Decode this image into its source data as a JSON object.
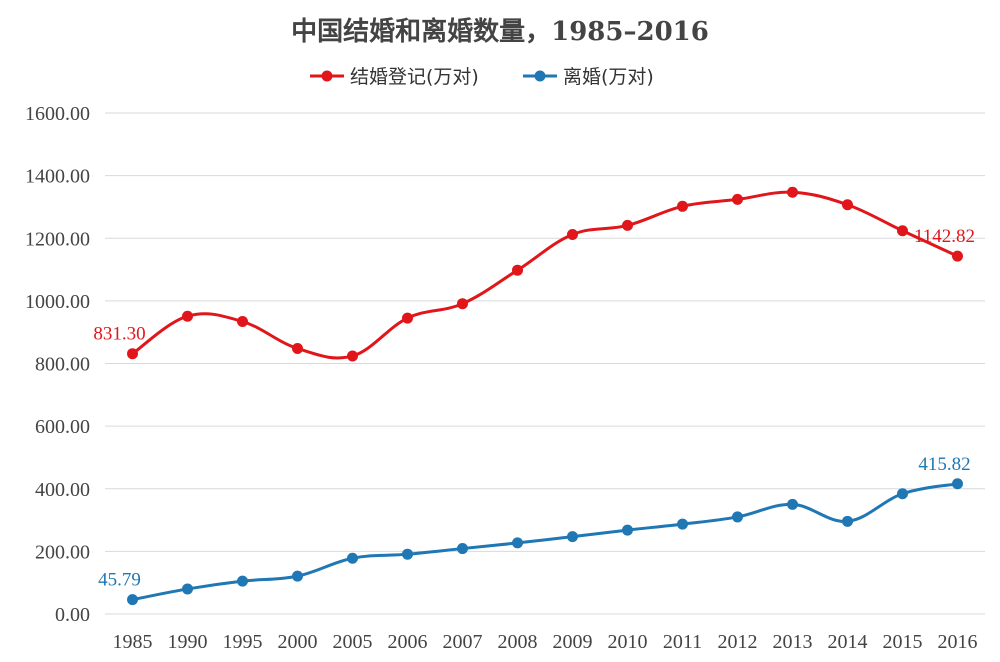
{
  "chart_data": {
    "type": "line",
    "title": "中国结婚和离婚数量，1985–2016",
    "categories": [
      "1985",
      "1990",
      "1995",
      "2000",
      "2005",
      "2006",
      "2007",
      "2008",
      "2009",
      "2010",
      "2011",
      "2012",
      "2013",
      "2014",
      "2015",
      "2016"
    ],
    "series": [
      {
        "name": "结婚登记(万对)",
        "color": "#e0161b",
        "values": [
          831.3,
          951.0,
          934.0,
          848.0,
          824.0,
          945.0,
          991.0,
          1098.0,
          1212.0,
          1241.0,
          1302.0,
          1324.0,
          1347.0,
          1307.0,
          1224.0,
          1142.82
        ],
        "data_labels": {
          "0": "831.30",
          "15": "1142.82"
        }
      },
      {
        "name": "离婚(万对)",
        "color": "#1f77b4",
        "values": [
          45.79,
          80.0,
          105.0,
          121.0,
          178.0,
          191.0,
          209.0,
          227.0,
          247.0,
          268.0,
          287.0,
          310.0,
          350.0,
          296.0,
          384.0,
          415.82
        ],
        "data_labels": {
          "0": "45.79",
          "15": "415.82"
        }
      }
    ],
    "ylim": [
      0,
      1600
    ],
    "yticks": [
      0,
      200,
      400,
      600,
      800,
      1000,
      1200,
      1400,
      1600
    ],
    "ytick_labels": [
      "0.00",
      "200.00",
      "400.00",
      "600.00",
      "800.00",
      "1000.00",
      "1200.00",
      "1400.00",
      "1600.00"
    ],
    "grid": true,
    "legend_position": "top-center"
  }
}
